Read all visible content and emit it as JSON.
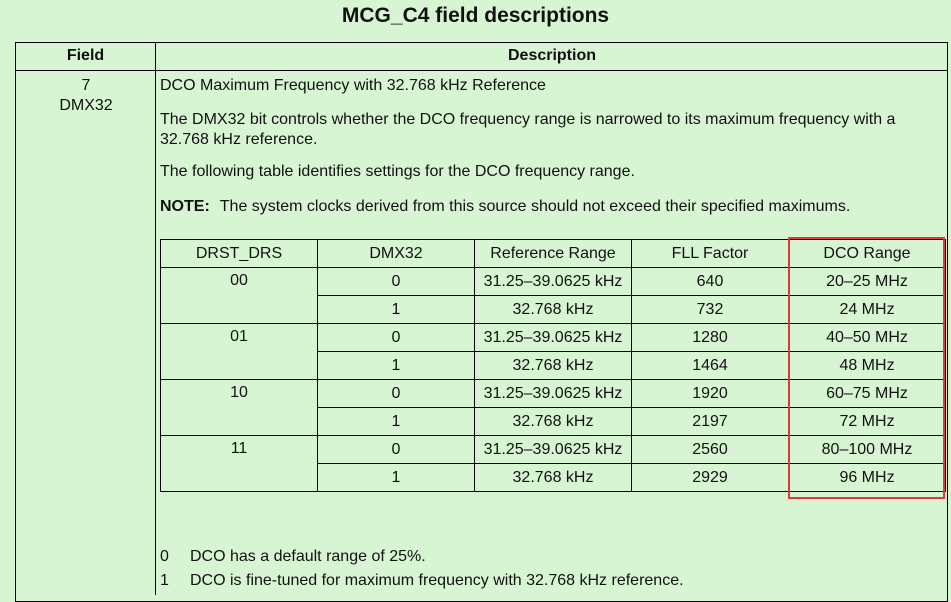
{
  "title": "MCG_C4 field descriptions",
  "headers": {
    "field": "Field",
    "description": "Description"
  },
  "field": {
    "bit": "7",
    "name": "DMX32"
  },
  "description": {
    "heading": "DCO Maximum Frequency with 32.768 kHz Reference",
    "para1_line1": "The DMX32 bit controls whether the DCO frequency range is narrowed to its maximum frequency with a",
    "para1_line2": "32.768 kHz reference.",
    "para2": "The following table identifies settings for the DCO frequency range.",
    "note_label": "NOTE:",
    "note_text": "The system clocks derived from this source should not exceed their specified maximums."
  },
  "dco_table": {
    "columns": [
      "DRST_DRS",
      "DMX32",
      "Reference Range",
      "FLL Factor",
      "DCO Range"
    ],
    "groups": [
      {
        "drst_drs": "00",
        "rows": [
          {
            "dmx32": "0",
            "ref": "31.25–39.0625 kHz",
            "fll": "640",
            "dco": "20–25 MHz"
          },
          {
            "dmx32": "1",
            "ref": "32.768 kHz",
            "fll": "732",
            "dco": "24 MHz"
          }
        ]
      },
      {
        "drst_drs": "01",
        "rows": [
          {
            "dmx32": "0",
            "ref": "31.25–39.0625 kHz",
            "fll": "1280",
            "dco": "40–50 MHz"
          },
          {
            "dmx32": "1",
            "ref": "32.768 kHz",
            "fll": "1464",
            "dco": "48 MHz"
          }
        ]
      },
      {
        "drst_drs": "10",
        "rows": [
          {
            "dmx32": "0",
            "ref": "31.25–39.0625 kHz",
            "fll": "1920",
            "dco": "60–75 MHz"
          },
          {
            "dmx32": "1",
            "ref": "32.768 kHz",
            "fll": "2197",
            "dco": "72 MHz"
          }
        ]
      },
      {
        "drst_drs": "11",
        "rows": [
          {
            "dmx32": "0",
            "ref": "31.25–39.0625 kHz",
            "fll": "2560",
            "dco": "80–100 MHz"
          },
          {
            "dmx32": "1",
            "ref": "32.768 kHz",
            "fll": "2929",
            "dco": "96 MHz"
          }
        ]
      }
    ]
  },
  "values": [
    {
      "value": "0",
      "text": "DCO has a default range of 25%."
    },
    {
      "value": "1",
      "text": "DCO is fine-tuned for maximum frequency with 32.768 kHz reference."
    }
  ],
  "colors": {
    "background": "#d8f5d3",
    "highlight": "#e03b3b"
  }
}
